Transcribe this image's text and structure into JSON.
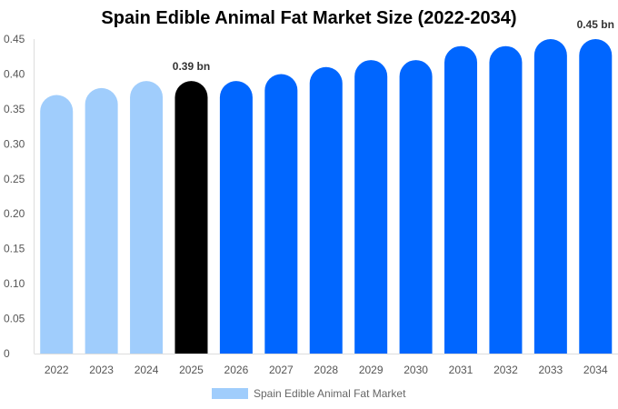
{
  "chart_data": {
    "type": "bar",
    "title": "Spain Edible Animal Fat Market Size (2022-2034)",
    "categories": [
      "2022",
      "2023",
      "2024",
      "2025",
      "2026",
      "2027",
      "2028",
      "2029",
      "2030",
      "2031",
      "2032",
      "2033",
      "2034"
    ],
    "series": [
      {
        "name": "Spain Edible Animal Fat Market",
        "values": [
          0.37,
          0.38,
          0.39,
          0.39,
          0.39,
          0.4,
          0.41,
          0.42,
          0.42,
          0.44,
          0.44,
          0.45,
          0.45
        ]
      }
    ],
    "bar_colors": [
      "#a0cdfc",
      "#a0cdfc",
      "#a0cdfc",
      "#000000",
      "#0066ff",
      "#0066ff",
      "#0066ff",
      "#0066ff",
      "#0066ff",
      "#0066ff",
      "#0066ff",
      "#0066ff",
      "#0066ff"
    ],
    "data_labels": [
      {
        "category": "2025",
        "text": "0.39 bn"
      },
      {
        "category": "2034",
        "text": "0.45 bn"
      }
    ],
    "yticks": [
      "0",
      "0.05",
      "0.10",
      "0.15",
      "0.20",
      "0.25",
      "0.30",
      "0.35",
      "0.40",
      "0.45"
    ],
    "ylim": [
      0,
      0.45
    ],
    "xlabel": "",
    "ylabel": "",
    "grid": false,
    "legend": "bottom",
    "legend_color": "#a0cdfc"
  }
}
